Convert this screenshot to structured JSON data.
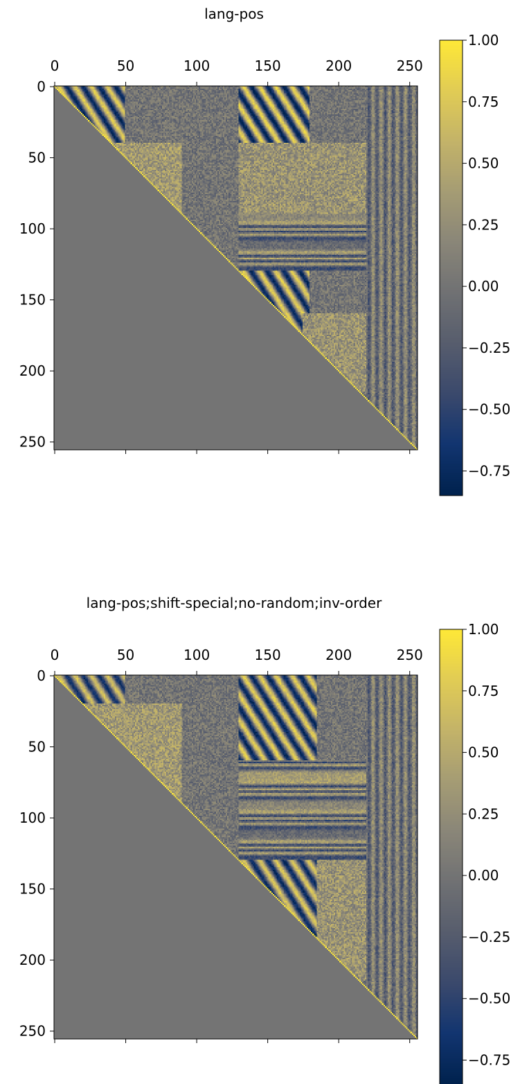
{
  "colormap": {
    "name": "cividis",
    "stops": [
      "#00224e",
      "#123570",
      "#3b496c",
      "#575d6d",
      "#707173",
      "#8a8678",
      "#a59c74",
      "#c3b369",
      "#e1cc55",
      "#fee838"
    ]
  },
  "chart_data": [
    {
      "type": "heatmap",
      "title": "lang-pos",
      "xlabel": "",
      "ylabel": "",
      "matrix_size": 256,
      "x_ticks": [
        "0",
        "50",
        "100",
        "150",
        "200",
        "250"
      ],
      "y_ticks": [
        "0",
        "50",
        "100",
        "150",
        "200",
        "250"
      ],
      "colorbar": {
        "vmin": -0.85,
        "vmax": 1.0,
        "ticks": [
          "1.00",
          "0.75",
          "0.50",
          "0.25",
          "0.00",
          "−0.25",
          "−0.50",
          "−0.75"
        ]
      },
      "lower_triangle_value": 0.0,
      "diagonal_value": 1.0,
      "regions": [
        {
          "x": [
            0,
            50
          ],
          "y": [
            0,
            50
          ],
          "pattern": "diagonal-stripes",
          "amplitude": 0.8
        },
        {
          "x": [
            130,
            180
          ],
          "y": [
            0,
            50
          ],
          "pattern": "diagonal-stripes",
          "amplitude": 0.85
        },
        {
          "x": [
            130,
            180
          ],
          "y": [
            130,
            180
          ],
          "pattern": "diagonal-stripes",
          "amplitude": 0.8
        },
        {
          "x": [
            40,
            90
          ],
          "y": [
            40,
            90
          ],
          "pattern": "positive-block",
          "mean": 0.35
        },
        {
          "x": [
            130,
            220
          ],
          "y": [
            40,
            90
          ],
          "pattern": "positive-block",
          "mean": 0.3
        },
        {
          "x": [
            175,
            220
          ],
          "y": [
            160,
            215
          ],
          "pattern": "positive-block",
          "mean": 0.3
        },
        {
          "x": [
            130,
            256
          ],
          "y": [
            90,
            130
          ],
          "pattern": "horizontal-bands",
          "amplitude": 0.45
        },
        {
          "x": [
            220,
            256
          ],
          "y": [
            0,
            256
          ],
          "pattern": "vertical-bands",
          "amplitude": 0.3
        }
      ]
    },
    {
      "type": "heatmap",
      "title": "lang-pos;shift-special;no-random;inv-order",
      "xlabel": "",
      "ylabel": "",
      "matrix_size": 256,
      "x_ticks": [
        "0",
        "50",
        "100",
        "150",
        "200",
        "250"
      ],
      "y_ticks": [
        "0",
        "50",
        "100",
        "150",
        "200",
        "250"
      ],
      "colorbar": {
        "vmin": -0.85,
        "vmax": 1.0,
        "ticks": [
          "1.00",
          "0.75",
          "0.50",
          "0.25",
          "0.00",
          "−0.25",
          "−0.50",
          "−0.75"
        ]
      },
      "lower_triangle_value": 0.0,
      "diagonal_value": 1.0,
      "regions": [
        {
          "x": [
            0,
            50
          ],
          "y": [
            0,
            50
          ],
          "pattern": "diagonal-stripes",
          "amplitude": 0.7
        },
        {
          "x": [
            130,
            185
          ],
          "y": [
            0,
            60
          ],
          "pattern": "diagonal-stripes",
          "amplitude": 0.8
        },
        {
          "x": [
            130,
            185
          ],
          "y": [
            130,
            185
          ],
          "pattern": "diagonal-stripes",
          "amplitude": 0.75
        },
        {
          "x": [
            20,
            90
          ],
          "y": [
            20,
            90
          ],
          "pattern": "positive-block",
          "mean": 0.35
        },
        {
          "x": [
            185,
            220
          ],
          "y": [
            130,
            215
          ],
          "pattern": "positive-block",
          "mean": 0.3
        },
        {
          "x": [
            130,
            256
          ],
          "y": [
            60,
            130
          ],
          "pattern": "horizontal-bands",
          "amplitude": 0.45
        },
        {
          "x": [
            220,
            256
          ],
          "y": [
            0,
            256
          ],
          "pattern": "vertical-bands",
          "amplitude": 0.3
        }
      ]
    }
  ]
}
